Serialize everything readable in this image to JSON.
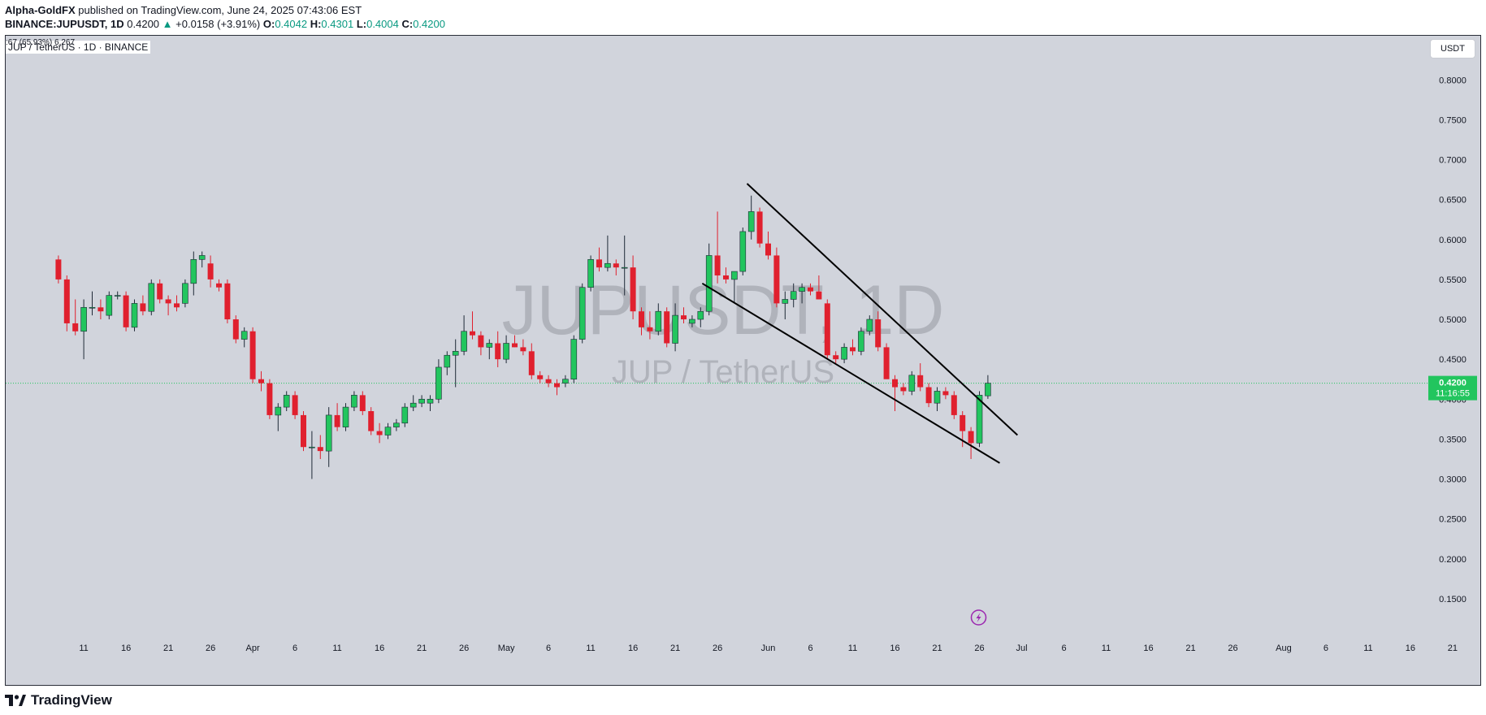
{
  "header": {
    "author": "Alpha-GoldFX",
    "published_text": "published on TradingView.com, June 24, 2025 07:43:06 EST",
    "symbol": "BINANCE:JUPUSDT, 1D",
    "last": "0.4200",
    "change_arrow": "▲",
    "change": "+0.0158 (+3.91%)",
    "o_label": "O:",
    "o_value": "0.4042",
    "h_label": "H:",
    "h_value": "0.4301",
    "l_label": "L:",
    "l_value": "0.4004",
    "c_label": "C:",
    "c_value": "0.4200"
  },
  "legend": {
    "text": "JUP / TetherUS · 1D · BINANCE",
    "overlap_text": ":67 (65.93%) 6,267"
  },
  "currency_button": "USDT",
  "watermark": {
    "main": "JUPUSDT, 1D",
    "sub": "JUP / TetherUS"
  },
  "footer": {
    "brand": "TradingView"
  },
  "colors": {
    "background": "#d1d4dc",
    "up": "#089981",
    "up_body": "#22c55e",
    "down": "#e0202e",
    "price_tag": "#22c55e",
    "watermark": "#9598a1"
  },
  "icons": {
    "event_marker": "lightning-icon",
    "logo": "tradingview-logo-icon"
  },
  "chart_data": {
    "type": "candlestick",
    "title": "JUP / TetherUS · 1D · BINANCE",
    "ylim": [
      0.1,
      0.84
    ],
    "y_ticks": [
      0.15,
      0.2,
      0.25,
      0.3,
      0.35,
      0.4,
      0.45,
      0.5,
      0.55,
      0.6,
      0.65,
      0.7,
      0.75,
      0.8
    ],
    "y_tick_labels": [
      "0.1500",
      "0.2000",
      "0.2500",
      "0.3000",
      "0.3500",
      "0.4000",
      "0.4500",
      "0.5000",
      "0.5500",
      "0.6000",
      "0.6500",
      "0.7000",
      "0.7500",
      "0.8000"
    ],
    "x_ticks": [
      {
        "day": 11,
        "label": "11"
      },
      {
        "day": 16,
        "label": "16"
      },
      {
        "day": 21,
        "label": "21"
      },
      {
        "day": 26,
        "label": "26"
      },
      {
        "day": 31,
        "label": "Apr"
      },
      {
        "day": 36,
        "label": "6"
      },
      {
        "day": 41,
        "label": "11"
      },
      {
        "day": 46,
        "label": "16"
      },
      {
        "day": 51,
        "label": "21"
      },
      {
        "day": 56,
        "label": "26"
      },
      {
        "day": 61,
        "label": "May"
      },
      {
        "day": 66,
        "label": "6"
      },
      {
        "day": 71,
        "label": "11"
      },
      {
        "day": 76,
        "label": "16"
      },
      {
        "day": 81,
        "label": "21"
      },
      {
        "day": 86,
        "label": "26"
      },
      {
        "day": 92,
        "label": "Jun"
      },
      {
        "day": 97,
        "label": "6"
      },
      {
        "day": 102,
        "label": "11"
      },
      {
        "day": 107,
        "label": "16"
      },
      {
        "day": 112,
        "label": "21"
      },
      {
        "day": 117,
        "label": "26"
      },
      {
        "day": 122,
        "label": "Jul"
      },
      {
        "day": 127,
        "label": "6"
      },
      {
        "day": 132,
        "label": "11"
      },
      {
        "day": 137,
        "label": "16"
      },
      {
        "day": 142,
        "label": "21"
      },
      {
        "day": 147,
        "label": "26"
      },
      {
        "day": 153,
        "label": "Aug"
      },
      {
        "day": 158,
        "label": "6"
      },
      {
        "day": 163,
        "label": "11"
      },
      {
        "day": 168,
        "label": "16"
      },
      {
        "day": 173,
        "label": "21"
      }
    ],
    "ohlc": [
      {
        "day": 8,
        "o": 0.575,
        "h": 0.58,
        "l": 0.545,
        "c": 0.55
      },
      {
        "day": 9,
        "o": 0.55,
        "h": 0.555,
        "l": 0.485,
        "c": 0.495
      },
      {
        "day": 10,
        "o": 0.495,
        "h": 0.525,
        "l": 0.48,
        "c": 0.485
      },
      {
        "day": 11,
        "o": 0.485,
        "h": 0.525,
        "l": 0.45,
        "c": 0.515
      },
      {
        "day": 12,
        "o": 0.515,
        "h": 0.535,
        "l": 0.505,
        "c": 0.515
      },
      {
        "day": 13,
        "o": 0.515,
        "h": 0.525,
        "l": 0.5,
        "c": 0.51
      },
      {
        "day": 14,
        "o": 0.505,
        "h": 0.535,
        "l": 0.5,
        "c": 0.53
      },
      {
        "day": 15,
        "o": 0.53,
        "h": 0.535,
        "l": 0.525,
        "c": 0.53
      },
      {
        "day": 16,
        "o": 0.53,
        "h": 0.535,
        "l": 0.485,
        "c": 0.49
      },
      {
        "day": 17,
        "o": 0.49,
        "h": 0.525,
        "l": 0.485,
        "c": 0.52
      },
      {
        "day": 18,
        "o": 0.52,
        "h": 0.53,
        "l": 0.505,
        "c": 0.51
      },
      {
        "day": 19,
        "o": 0.51,
        "h": 0.55,
        "l": 0.505,
        "c": 0.545
      },
      {
        "day": 20,
        "o": 0.545,
        "h": 0.55,
        "l": 0.52,
        "c": 0.525
      },
      {
        "day": 21,
        "o": 0.525,
        "h": 0.53,
        "l": 0.505,
        "c": 0.52
      },
      {
        "day": 22,
        "o": 0.52,
        "h": 0.53,
        "l": 0.51,
        "c": 0.515
      },
      {
        "day": 23,
        "o": 0.52,
        "h": 0.55,
        "l": 0.515,
        "c": 0.545
      },
      {
        "day": 24,
        "o": 0.545,
        "h": 0.585,
        "l": 0.53,
        "c": 0.575
      },
      {
        "day": 25,
        "o": 0.575,
        "h": 0.585,
        "l": 0.565,
        "c": 0.58
      },
      {
        "day": 26,
        "o": 0.57,
        "h": 0.58,
        "l": 0.54,
        "c": 0.55
      },
      {
        "day": 27,
        "o": 0.545,
        "h": 0.55,
        "l": 0.535,
        "c": 0.54
      },
      {
        "day": 28,
        "o": 0.545,
        "h": 0.55,
        "l": 0.495,
        "c": 0.5
      },
      {
        "day": 29,
        "o": 0.5,
        "h": 0.505,
        "l": 0.47,
        "c": 0.475
      },
      {
        "day": 30,
        "o": 0.475,
        "h": 0.49,
        "l": 0.465,
        "c": 0.485
      },
      {
        "day": 31,
        "o": 0.485,
        "h": 0.49,
        "l": 0.42,
        "c": 0.425
      },
      {
        "day": 32,
        "o": 0.425,
        "h": 0.435,
        "l": 0.41,
        "c": 0.42
      },
      {
        "day": 33,
        "o": 0.42,
        "h": 0.425,
        "l": 0.375,
        "c": 0.38
      },
      {
        "day": 34,
        "o": 0.38,
        "h": 0.395,
        "l": 0.36,
        "c": 0.39
      },
      {
        "day": 35,
        "o": 0.39,
        "h": 0.41,
        "l": 0.385,
        "c": 0.405
      },
      {
        "day": 36,
        "o": 0.405,
        "h": 0.41,
        "l": 0.375,
        "c": 0.38
      },
      {
        "day": 37,
        "o": 0.38,
        "h": 0.385,
        "l": 0.335,
        "c": 0.34
      },
      {
        "day": 38,
        "o": 0.34,
        "h": 0.36,
        "l": 0.3,
        "c": 0.34
      },
      {
        "day": 39,
        "o": 0.34,
        "h": 0.355,
        "l": 0.325,
        "c": 0.335
      },
      {
        "day": 40,
        "o": 0.335,
        "h": 0.39,
        "l": 0.315,
        "c": 0.38
      },
      {
        "day": 41,
        "o": 0.38,
        "h": 0.395,
        "l": 0.36,
        "c": 0.365
      },
      {
        "day": 42,
        "o": 0.365,
        "h": 0.395,
        "l": 0.36,
        "c": 0.39
      },
      {
        "day": 43,
        "o": 0.39,
        "h": 0.41,
        "l": 0.385,
        "c": 0.405
      },
      {
        "day": 44,
        "o": 0.405,
        "h": 0.41,
        "l": 0.38,
        "c": 0.385
      },
      {
        "day": 45,
        "o": 0.385,
        "h": 0.39,
        "l": 0.355,
        "c": 0.36
      },
      {
        "day": 46,
        "o": 0.36,
        "h": 0.37,
        "l": 0.345,
        "c": 0.355
      },
      {
        "day": 47,
        "o": 0.355,
        "h": 0.37,
        "l": 0.35,
        "c": 0.365
      },
      {
        "day": 48,
        "o": 0.365,
        "h": 0.375,
        "l": 0.36,
        "c": 0.37
      },
      {
        "day": 49,
        "o": 0.37,
        "h": 0.395,
        "l": 0.365,
        "c": 0.39
      },
      {
        "day": 50,
        "o": 0.39,
        "h": 0.405,
        "l": 0.385,
        "c": 0.395
      },
      {
        "day": 51,
        "o": 0.395,
        "h": 0.405,
        "l": 0.39,
        "c": 0.4
      },
      {
        "day": 52,
        "o": 0.395,
        "h": 0.405,
        "l": 0.385,
        "c": 0.4
      },
      {
        "day": 53,
        "o": 0.4,
        "h": 0.45,
        "l": 0.395,
        "c": 0.44
      },
      {
        "day": 54,
        "o": 0.44,
        "h": 0.46,
        "l": 0.43,
        "c": 0.455
      },
      {
        "day": 55,
        "o": 0.455,
        "h": 0.475,
        "l": 0.415,
        "c": 0.46
      },
      {
        "day": 56,
        "o": 0.46,
        "h": 0.505,
        "l": 0.455,
        "c": 0.485
      },
      {
        "day": 57,
        "o": 0.485,
        "h": 0.51,
        "l": 0.475,
        "c": 0.48
      },
      {
        "day": 58,
        "o": 0.48,
        "h": 0.485,
        "l": 0.455,
        "c": 0.465
      },
      {
        "day": 59,
        "o": 0.465,
        "h": 0.475,
        "l": 0.45,
        "c": 0.47
      },
      {
        "day": 60,
        "o": 0.47,
        "h": 0.485,
        "l": 0.44,
        "c": 0.45
      },
      {
        "day": 61,
        "o": 0.45,
        "h": 0.48,
        "l": 0.445,
        "c": 0.47
      },
      {
        "day": 62,
        "o": 0.47,
        "h": 0.48,
        "l": 0.465,
        "c": 0.465
      },
      {
        "day": 63,
        "o": 0.465,
        "h": 0.475,
        "l": 0.455,
        "c": 0.46
      },
      {
        "day": 64,
        "o": 0.46,
        "h": 0.47,
        "l": 0.425,
        "c": 0.43
      },
      {
        "day": 65,
        "o": 0.43,
        "h": 0.435,
        "l": 0.42,
        "c": 0.425
      },
      {
        "day": 66,
        "o": 0.425,
        "h": 0.43,
        "l": 0.415,
        "c": 0.42
      },
      {
        "day": 67,
        "o": 0.42,
        "h": 0.425,
        "l": 0.405,
        "c": 0.415
      },
      {
        "day": 68,
        "o": 0.42,
        "h": 0.43,
        "l": 0.415,
        "c": 0.425
      },
      {
        "day": 69,
        "o": 0.425,
        "h": 0.48,
        "l": 0.42,
        "c": 0.475
      },
      {
        "day": 70,
        "o": 0.475,
        "h": 0.545,
        "l": 0.47,
        "c": 0.54
      },
      {
        "day": 71,
        "o": 0.54,
        "h": 0.58,
        "l": 0.535,
        "c": 0.575
      },
      {
        "day": 72,
        "o": 0.575,
        "h": 0.59,
        "l": 0.56,
        "c": 0.565
      },
      {
        "day": 73,
        "o": 0.565,
        "h": 0.605,
        "l": 0.56,
        "c": 0.57
      },
      {
        "day": 74,
        "o": 0.57,
        "h": 0.575,
        "l": 0.555,
        "c": 0.565
      },
      {
        "day": 75,
        "o": 0.565,
        "h": 0.605,
        "l": 0.53,
        "c": 0.565
      },
      {
        "day": 76,
        "o": 0.565,
        "h": 0.58,
        "l": 0.5,
        "c": 0.51
      },
      {
        "day": 77,
        "o": 0.51,
        "h": 0.515,
        "l": 0.48,
        "c": 0.49
      },
      {
        "day": 78,
        "o": 0.49,
        "h": 0.51,
        "l": 0.475,
        "c": 0.485
      },
      {
        "day": 79,
        "o": 0.485,
        "h": 0.52,
        "l": 0.48,
        "c": 0.51
      },
      {
        "day": 80,
        "o": 0.51,
        "h": 0.515,
        "l": 0.465,
        "c": 0.47
      },
      {
        "day": 81,
        "o": 0.47,
        "h": 0.52,
        "l": 0.46,
        "c": 0.505
      },
      {
        "day": 82,
        "o": 0.505,
        "h": 0.515,
        "l": 0.495,
        "c": 0.5
      },
      {
        "day": 83,
        "o": 0.495,
        "h": 0.505,
        "l": 0.49,
        "c": 0.5
      },
      {
        "day": 84,
        "o": 0.5,
        "h": 0.515,
        "l": 0.49,
        "c": 0.51
      },
      {
        "day": 85,
        "o": 0.51,
        "h": 0.595,
        "l": 0.505,
        "c": 0.58
      },
      {
        "day": 86,
        "o": 0.58,
        "h": 0.635,
        "l": 0.545,
        "c": 0.555
      },
      {
        "day": 87,
        "o": 0.555,
        "h": 0.565,
        "l": 0.545,
        "c": 0.55
      },
      {
        "day": 88,
        "o": 0.55,
        "h": 0.56,
        "l": 0.52,
        "c": 0.56
      },
      {
        "day": 89,
        "o": 0.56,
        "h": 0.615,
        "l": 0.555,
        "c": 0.61
      },
      {
        "day": 90,
        "o": 0.61,
        "h": 0.655,
        "l": 0.6,
        "c": 0.635
      },
      {
        "day": 91,
        "o": 0.635,
        "h": 0.64,
        "l": 0.59,
        "c": 0.595
      },
      {
        "day": 92,
        "o": 0.595,
        "h": 0.61,
        "l": 0.575,
        "c": 0.58
      },
      {
        "day": 93,
        "o": 0.58,
        "h": 0.59,
        "l": 0.515,
        "c": 0.52
      },
      {
        "day": 94,
        "o": 0.52,
        "h": 0.535,
        "l": 0.5,
        "c": 0.525
      },
      {
        "day": 95,
        "o": 0.525,
        "h": 0.545,
        "l": 0.515,
        "c": 0.535
      },
      {
        "day": 96,
        "o": 0.535,
        "h": 0.545,
        "l": 0.52,
        "c": 0.54
      },
      {
        "day": 97,
        "o": 0.54,
        "h": 0.545,
        "l": 0.53,
        "c": 0.535
      },
      {
        "day": 98,
        "o": 0.535,
        "h": 0.555,
        "l": 0.525,
        "c": 0.525
      },
      {
        "day": 99,
        "o": 0.52,
        "h": 0.525,
        "l": 0.45,
        "c": 0.455
      },
      {
        "day": 100,
        "o": 0.455,
        "h": 0.46,
        "l": 0.445,
        "c": 0.45
      },
      {
        "day": 101,
        "o": 0.45,
        "h": 0.47,
        "l": 0.445,
        "c": 0.465
      },
      {
        "day": 102,
        "o": 0.465,
        "h": 0.475,
        "l": 0.455,
        "c": 0.46
      },
      {
        "day": 103,
        "o": 0.46,
        "h": 0.49,
        "l": 0.455,
        "c": 0.485
      },
      {
        "day": 104,
        "o": 0.485,
        "h": 0.505,
        "l": 0.48,
        "c": 0.5
      },
      {
        "day": 105,
        "o": 0.5,
        "h": 0.51,
        "l": 0.46,
        "c": 0.465
      },
      {
        "day": 106,
        "o": 0.465,
        "h": 0.47,
        "l": 0.43,
        "c": 0.425
      },
      {
        "day": 107,
        "o": 0.425,
        "h": 0.43,
        "l": 0.385,
        "c": 0.415
      },
      {
        "day": 108,
        "o": 0.415,
        "h": 0.42,
        "l": 0.405,
        "c": 0.41
      },
      {
        "day": 109,
        "o": 0.41,
        "h": 0.435,
        "l": 0.405,
        "c": 0.43
      },
      {
        "day": 110,
        "o": 0.43,
        "h": 0.445,
        "l": 0.41,
        "c": 0.415
      },
      {
        "day": 111,
        "o": 0.415,
        "h": 0.42,
        "l": 0.39,
        "c": 0.395
      },
      {
        "day": 112,
        "o": 0.395,
        "h": 0.415,
        "l": 0.385,
        "c": 0.41
      },
      {
        "day": 113,
        "o": 0.41,
        "h": 0.415,
        "l": 0.4,
        "c": 0.405
      },
      {
        "day": 114,
        "o": 0.405,
        "h": 0.41,
        "l": 0.375,
        "c": 0.38
      },
      {
        "day": 115,
        "o": 0.38,
        "h": 0.385,
        "l": 0.34,
        "c": 0.36
      },
      {
        "day": 116,
        "o": 0.36,
        "h": 0.365,
        "l": 0.325,
        "c": 0.345
      },
      {
        "day": 117,
        "o": 0.345,
        "h": 0.41,
        "l": 0.34,
        "c": 0.405
      },
      {
        "day": 118,
        "o": 0.4042,
        "h": 0.4301,
        "l": 0.4004,
        "c": 0.42
      }
    ],
    "trendlines": [
      {
        "name": "upper",
        "from": {
          "day": 89.5,
          "value": 0.67
        },
        "to": {
          "day": 121.5,
          "value": 0.355
        }
      },
      {
        "name": "lower",
        "from": {
          "day": 84.2,
          "value": 0.545
        },
        "to": {
          "day": 119.4,
          "value": 0.32
        }
      }
    ],
    "current_price": {
      "value": 0.42,
      "label": "0.4200",
      "countdown": "11:16:55"
    },
    "event_marker": {
      "day": 117,
      "icon": "lightning-icon"
    },
    "grid": false
  }
}
